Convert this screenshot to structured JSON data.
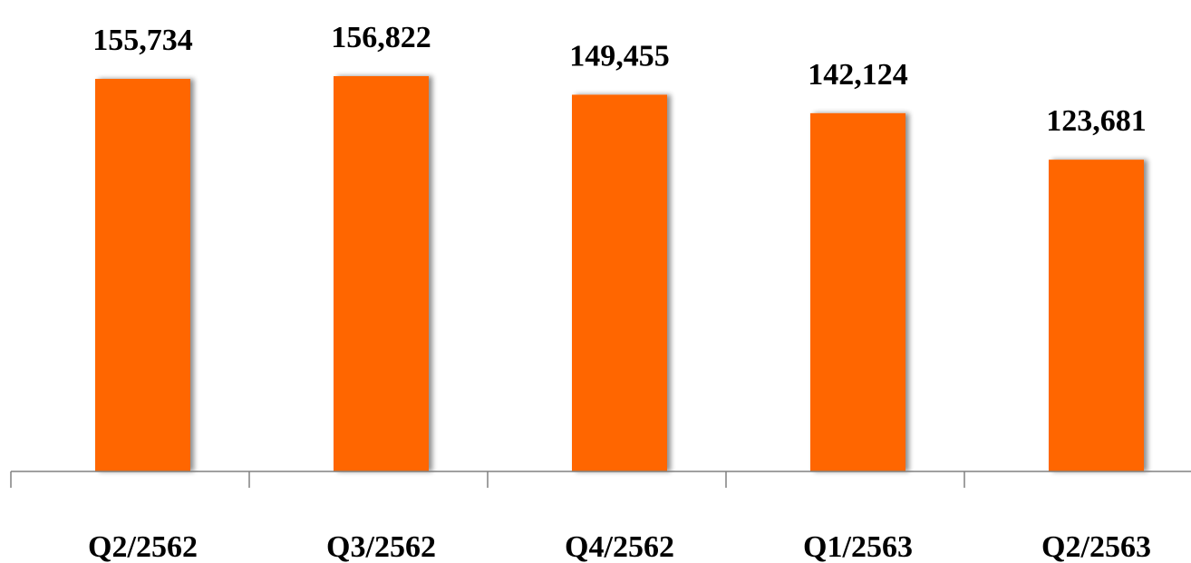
{
  "chart_data": {
    "type": "bar",
    "categories": [
      "Q2/2562",
      "Q3/2562",
      "Q4/2562",
      "Q1/2563",
      "Q2/2563"
    ],
    "values": [
      155734,
      156822,
      149455,
      142124,
      123681
    ],
    "value_labels": [
      "155,734",
      "156,822",
      "149,455",
      "142,124",
      "123,681"
    ],
    "bar_color": "#ff6600",
    "ylim": [
      0,
      156822
    ],
    "grid": false,
    "legend": "none"
  }
}
